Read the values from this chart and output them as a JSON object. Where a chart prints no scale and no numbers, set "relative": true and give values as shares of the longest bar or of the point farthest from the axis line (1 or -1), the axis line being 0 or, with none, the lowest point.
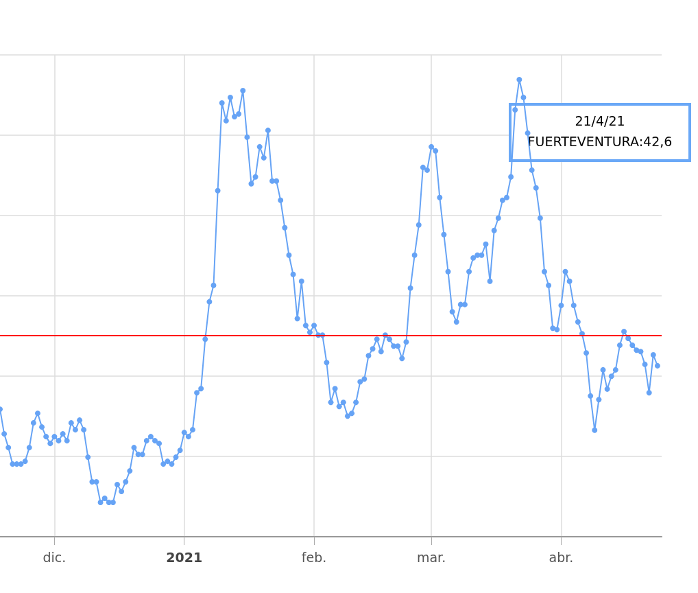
{
  "chart_data": {
    "type": "line",
    "relative": true,
    "grid": true,
    "marker": "circle",
    "line_style": "solid",
    "tick_labels": "x",
    "xlim": [
      "2020-11-18",
      "2021-04-25"
    ],
    "xticks": [
      {
        "value": "2020-12-01",
        "label": "dic."
      },
      {
        "value": "2021-01-01",
        "label": "2021"
      },
      {
        "value": "2021-02-01",
        "label": "feb."
      },
      {
        "value": "2021-03-01",
        "label": "mar."
      },
      {
        "value": "2021-04-01",
        "label": "abr."
      }
    ],
    "ref_lines": [
      {
        "axis": "y",
        "value": 0.437,
        "color": "#ff0000"
      }
    ],
    "annotations": [
      "21/4/21",
      "FUERTEVENTURA:42,6"
    ],
    "x": [
      "2020-11-18",
      "2020-11-19",
      "2020-11-20",
      "2020-11-21",
      "2020-11-22",
      "2020-11-23",
      "2020-11-24",
      "2020-11-25",
      "2020-11-26",
      "2020-11-27",
      "2020-11-28",
      "2020-11-29",
      "2020-11-30",
      "2020-12-01",
      "2020-12-02",
      "2020-12-03",
      "2020-12-04",
      "2020-12-05",
      "2020-12-06",
      "2020-12-07",
      "2020-12-08",
      "2020-12-09",
      "2020-12-10",
      "2020-12-11",
      "2020-12-12",
      "2020-12-13",
      "2020-12-14",
      "2020-12-15",
      "2020-12-16",
      "2020-12-17",
      "2020-12-18",
      "2020-12-19",
      "2020-12-20",
      "2020-12-21",
      "2020-12-22",
      "2020-12-23",
      "2020-12-24",
      "2020-12-25",
      "2020-12-26",
      "2020-12-27",
      "2020-12-28",
      "2020-12-29",
      "2020-12-30",
      "2020-12-31",
      "2021-01-01",
      "2021-01-02",
      "2021-01-03",
      "2021-01-04",
      "2021-01-05",
      "2021-01-06",
      "2021-01-07",
      "2021-01-08",
      "2021-01-09",
      "2021-01-10",
      "2021-01-11",
      "2021-01-12",
      "2021-01-13",
      "2021-01-14",
      "2021-01-15",
      "2021-01-16",
      "2021-01-17",
      "2021-01-18",
      "2021-01-19",
      "2021-01-20",
      "2021-01-21",
      "2021-01-22",
      "2021-01-23",
      "2021-01-24",
      "2021-01-25",
      "2021-01-26",
      "2021-01-27",
      "2021-01-28",
      "2021-01-29",
      "2021-01-30",
      "2021-01-31",
      "2021-02-01",
      "2021-02-02",
      "2021-02-03",
      "2021-02-04",
      "2021-02-05",
      "2021-02-06",
      "2021-02-07",
      "2021-02-08",
      "2021-02-09",
      "2021-02-10",
      "2021-02-11",
      "2021-02-12",
      "2021-02-13",
      "2021-02-14",
      "2021-02-15",
      "2021-02-16",
      "2021-02-17",
      "2021-02-18",
      "2021-02-19",
      "2021-02-20",
      "2021-02-21",
      "2021-02-22",
      "2021-02-23",
      "2021-02-24",
      "2021-02-25",
      "2021-02-26",
      "2021-02-27",
      "2021-02-28",
      "2021-03-01",
      "2021-03-02",
      "2021-03-03",
      "2021-03-04",
      "2021-03-05",
      "2021-03-06",
      "2021-03-07",
      "2021-03-08",
      "2021-03-09",
      "2021-03-10",
      "2021-03-11",
      "2021-03-12",
      "2021-03-13",
      "2021-03-14",
      "2021-03-15",
      "2021-03-16",
      "2021-03-17",
      "2021-03-18",
      "2021-03-19",
      "2021-03-20",
      "2021-03-21",
      "2021-03-22",
      "2021-03-23",
      "2021-03-24",
      "2021-03-25",
      "2021-03-26",
      "2021-03-27",
      "2021-03-28",
      "2021-03-29",
      "2021-03-30",
      "2021-03-31",
      "2021-04-01",
      "2021-04-02",
      "2021-04-03",
      "2021-04-04",
      "2021-04-05",
      "2021-04-06",
      "2021-04-07",
      "2021-04-08",
      "2021-04-09",
      "2021-04-10",
      "2021-04-11",
      "2021-04-12",
      "2021-04-13",
      "2021-04-14",
      "2021-04-15",
      "2021-04-16",
      "2021-04-17",
      "2021-04-18",
      "2021-04-19",
      "2021-04-20",
      "2021-04-21",
      "2021-04-22",
      "2021-04-23",
      "2021-04-24"
    ],
    "series": [
      {
        "color": "#66a3f5",
        "values": [
          0.279,
          0.225,
          0.195,
          0.159,
          0.159,
          0.159,
          0.165,
          0.195,
          0.249,
          0.27,
          0.24,
          0.219,
          0.204,
          0.219,
          0.21,
          0.225,
          0.21,
          0.249,
          0.234,
          0.255,
          0.234,
          0.174,
          0.12,
          0.12,
          0.075,
          0.084,
          0.075,
          0.075,
          0.114,
          0.099,
          0.12,
          0.144,
          0.195,
          0.18,
          0.18,
          0.21,
          0.219,
          0.21,
          0.204,
          0.159,
          0.165,
          0.159,
          0.174,
          0.189,
          0.228,
          0.219,
          0.234,
          0.315,
          0.324,
          0.432,
          0.514,
          0.55,
          0.757,
          0.949,
          0.91,
          0.961,
          0.919,
          0.925,
          0.976,
          0.874,
          0.772,
          0.787,
          0.853,
          0.829,
          0.889,
          0.778,
          0.778,
          0.736,
          0.676,
          0.616,
          0.574,
          0.477,
          0.559,
          0.462,
          0.447,
          0.462,
          0.441,
          0.441,
          0.381,
          0.294,
          0.324,
          0.285,
          0.294,
          0.264,
          0.27,
          0.294,
          0.339,
          0.345,
          0.396,
          0.411,
          0.432,
          0.405,
          0.441,
          0.432,
          0.417,
          0.417,
          0.39,
          0.426,
          0.544,
          0.616,
          0.682,
          0.808,
          0.802,
          0.853,
          0.844,
          0.742,
          0.661,
          0.58,
          0.492,
          0.47,
          0.508,
          0.508,
          0.58,
          0.61,
          0.616,
          0.616,
          0.64,
          0.559,
          0.67,
          0.697,
          0.736,
          0.742,
          0.787,
          0.934,
          1,
          0.961,
          0.883,
          0.802,
          0.763,
          0.697,
          0.58,
          0.55,
          0.456,
          0.453,
          0.506,
          0.58,
          0.559,
          0.506,
          0.47,
          0.444,
          0.402,
          0.308,
          0.233,
          0.3,
          0.365,
          0.323,
          0.351,
          0.365,
          0.419,
          0.449,
          0.434,
          0.419,
          0.408,
          0.405,
          0.377,
          0.315,
          0.398,
          0.374
        ]
      }
    ]
  }
}
